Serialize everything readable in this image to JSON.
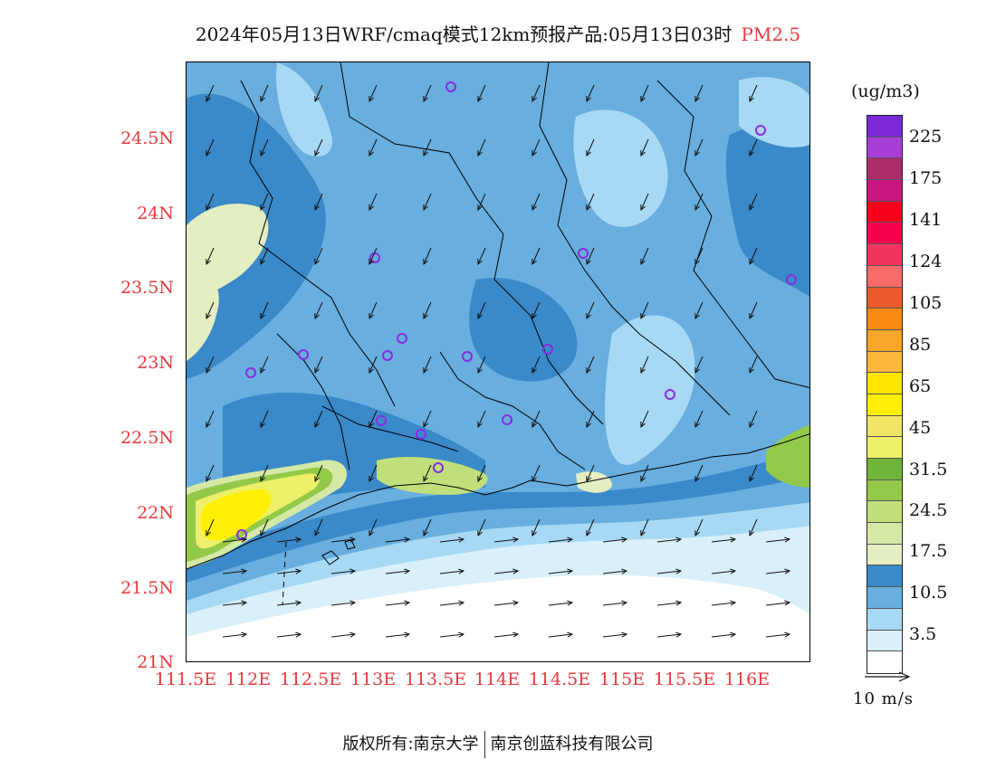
{
  "title": {
    "main": "2024年05月13日WRF/cmaq模式12km预报产品:05月13日03时",
    "pollutant": "PM2.5"
  },
  "axes": {
    "lat_ticks": [
      "24.5N",
      "24N",
      "23.5N",
      "23N",
      "22.5N",
      "22N",
      "21.5N",
      "21N"
    ],
    "lon_ticks": [
      "111.5E",
      "112E",
      "112.5E",
      "113E",
      "113.5E",
      "114E",
      "114.5E",
      "115E",
      "115.5E",
      "116E"
    ]
  },
  "legend": {
    "unit": "(ug/m3)",
    "labels": [
      "225",
      "175",
      "141",
      "124",
      "105",
      "85",
      "65",
      "45",
      "31.5",
      "24.5",
      "17.5",
      "10.5",
      "3.5"
    ],
    "colors": [
      "#7a29d6",
      "#a83fd9",
      "#ad2c6a",
      "#c8157f",
      "#f8001d",
      "#f5004d",
      "#f5335f",
      "#f86b6b",
      "#ea5a2c",
      "#f78a10",
      "#f8a528",
      "#fbb83b",
      "#ffe400",
      "#ffef05",
      "#f2e465",
      "#eef069",
      "#6fb539",
      "#93c949",
      "#c0df7a",
      "#d5e9a7",
      "#e3eec2",
      "#3a89c9",
      "#68aedf",
      "#a7d9f5",
      "#d9f0fb",
      "#ffffff"
    ]
  },
  "wind": {
    "ref_label": "10 m/s"
  },
  "footer": {
    "copyright": "版权所有:南京大学",
    "company": "南京创蓝科技有限公司"
  }
}
